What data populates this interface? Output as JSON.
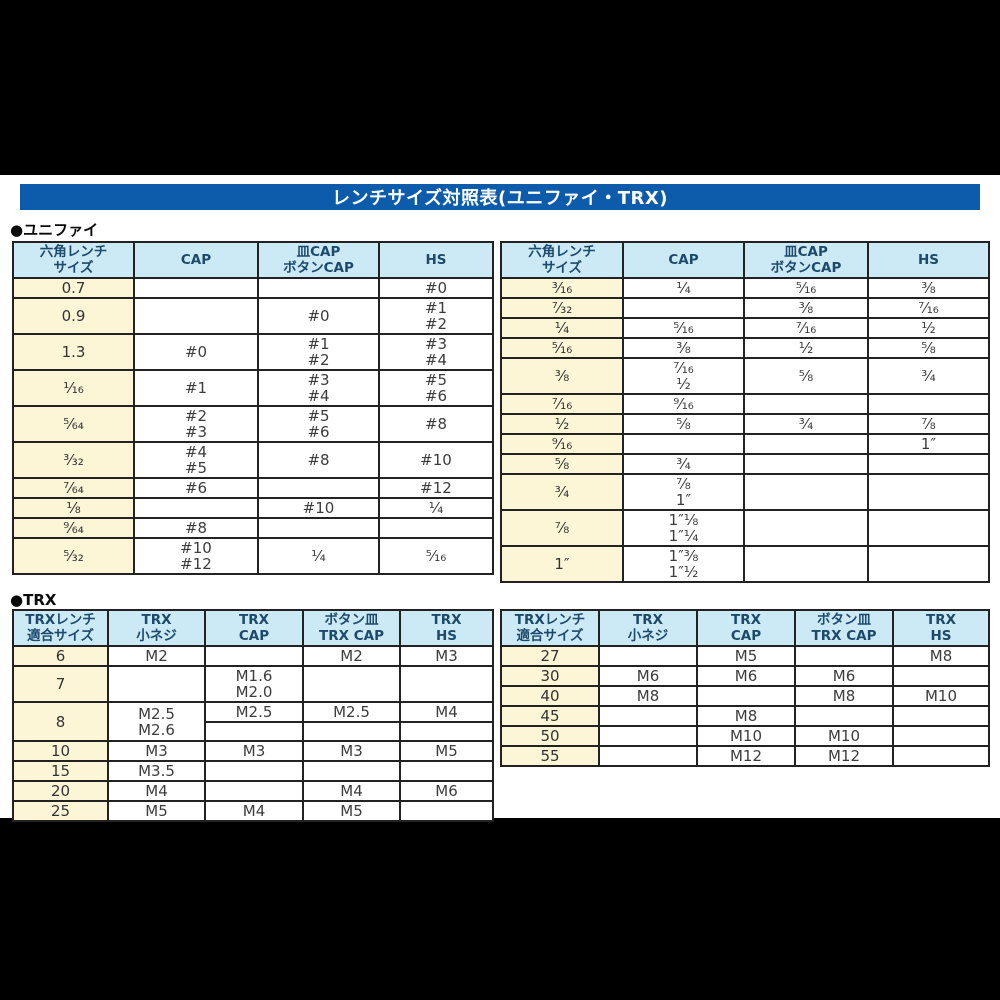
{
  "title_bar": {
    "text": "レンチサイズ対照表(ユニファイ・TRX)"
  },
  "colors": {
    "page_background": "#000000",
    "content_background": "#ffffff",
    "title_bar_background": "#0d5cab",
    "title_text": "#ffffff",
    "header_cell_background": "#cce9f6",
    "header_cell_text": "#1d4a6b",
    "size_column_background": "#fcf6d7",
    "border": "#222222",
    "cell_text": "#3c3c3c"
  },
  "sections": [
    {
      "label": "●ユニファイ",
      "tables": [
        {
          "name": "unify-left",
          "headers": [
            "六角レンチ\nサイズ",
            "CAP",
            "皿CAP\nボタンCAP",
            "HS"
          ],
          "rows": [
            {
              "size": "0.7",
              "cells": [
                "",
                "",
                "#0"
              ]
            },
            {
              "size": "0.9",
              "cells": [
                "",
                "#0",
                "#1\n#2"
              ]
            },
            {
              "size": "1.3",
              "cells": [
                "#0",
                "#1\n#2",
                "#3\n#4"
              ]
            },
            {
              "size": "¹⁄₁₆",
              "cells": [
                "#1",
                "#3\n#4",
                "#5\n#6"
              ]
            },
            {
              "size": "⁵⁄₆₄",
              "cells": [
                "#2\n#3",
                "#5\n#6",
                "#8"
              ]
            },
            {
              "size": "³⁄₃₂",
              "cells": [
                "#4\n#5",
                "#8",
                "#10"
              ]
            },
            {
              "size": "⁷⁄₆₄",
              "cells": [
                "#6",
                "",
                "#12"
              ]
            },
            {
              "size": "¹⁄₈",
              "cells": [
                "",
                "#10",
                "¹⁄₄"
              ]
            },
            {
              "size": "⁹⁄₆₄",
              "cells": [
                "#8",
                "",
                ""
              ]
            },
            {
              "size": "⁵⁄₃₂",
              "cells": [
                "#10\n#12",
                "¹⁄₄",
                "⁵⁄₁₆"
              ]
            }
          ]
        },
        {
          "name": "unify-right",
          "headers": [
            "六角レンチ\nサイズ",
            "CAP",
            "皿CAP\nボタンCAP",
            "HS"
          ],
          "rows": [
            {
              "size": "³⁄₁₆",
              "cells": [
                "¹⁄₄",
                "⁵⁄₁₆",
                "³⁄₈"
              ]
            },
            {
              "size": "⁷⁄₃₂",
              "cells": [
                "",
                "³⁄₈",
                "⁷⁄₁₆"
              ]
            },
            {
              "size": "¹⁄₄",
              "cells": [
                "⁵⁄₁₆",
                "⁷⁄₁₆",
                "¹⁄₂"
              ]
            },
            {
              "size": "⁵⁄₁₆",
              "cells": [
                "³⁄₈",
                "¹⁄₂",
                "⁵⁄₈"
              ]
            },
            {
              "size": "³⁄₈",
              "cells": [
                "⁷⁄₁₆\n¹⁄₂",
                "⁵⁄₈",
                "³⁄₄"
              ]
            },
            {
              "size": "⁷⁄₁₆",
              "cells": [
                "⁹⁄₁₆",
                "",
                ""
              ]
            },
            {
              "size": "¹⁄₂",
              "cells": [
                "⁵⁄₈",
                "³⁄₄",
                "⁷⁄₈"
              ]
            },
            {
              "size": "⁹⁄₁₆",
              "cells": [
                "",
                "",
                "1″"
              ]
            },
            {
              "size": "⁵⁄₈",
              "cells": [
                "³⁄₄",
                "",
                ""
              ]
            },
            {
              "size": "³⁄₄",
              "cells": [
                "⁷⁄₈\n1″",
                "",
                ""
              ]
            },
            {
              "size": "⁷⁄₈",
              "cells": [
                "1″¹⁄₈\n1″¹⁄₄",
                "",
                ""
              ]
            },
            {
              "size": "1″",
              "cells": [
                "1″³⁄₈\n1″¹⁄₂",
                "",
                ""
              ]
            }
          ]
        }
      ]
    },
    {
      "label": "●TRX",
      "tables": [
        {
          "name": "trx-left",
          "headers": [
            "TRXレンチ\n適合サイズ",
            "TRX\n小ネジ",
            "TRX\nCAP",
            "ボタン皿\nTRX CAP",
            "TRX\nHS"
          ],
          "rows": [
            {
              "size": "6",
              "cells": [
                "M2",
                "",
                "M2",
                "M3"
              ]
            },
            {
              "size": "7",
              "cells": [
                "",
                "M1.6\nM2.0",
                "",
                ""
              ]
            },
            {
              "size": "8",
              "cells": [
                "M2.5\nM2.6",
                "M2.5",
                "M2.5",
                "M4"
              ],
              "subrow": [
                "",
                "",
                ""
              ]
            },
            {
              "size": "10",
              "cells": [
                "M3",
                "M3",
                "M3",
                "M5"
              ]
            },
            {
              "size": "15",
              "cells": [
                "M3.5",
                "",
                "",
                ""
              ]
            },
            {
              "size": "20",
              "cells": [
                "M4",
                "",
                "M4",
                "M6"
              ]
            },
            {
              "size": "25",
              "cells": [
                "M5",
                "M4",
                "M5",
                ""
              ]
            }
          ]
        },
        {
          "name": "trx-right",
          "headers": [
            "TRXレンチ\n適合サイズ",
            "TRX\n小ネジ",
            "TRX\nCAP",
            "ボタン皿\nTRX CAP",
            "TRX\nHS"
          ],
          "rows": [
            {
              "size": "27",
              "cells": [
                "",
                "M5",
                "",
                "M8"
              ]
            },
            {
              "size": "30",
              "cells": [
                "M6",
                "M6",
                "M6",
                ""
              ]
            },
            {
              "size": "40",
              "cells": [
                "M8",
                "",
                "M8",
                "M10"
              ]
            },
            {
              "size": "45",
              "cells": [
                "",
                "M8",
                "",
                ""
              ]
            },
            {
              "size": "50",
              "cells": [
                "",
                "M10",
                "M10",
                ""
              ]
            },
            {
              "size": "55",
              "cells": [
                "",
                "M12",
                "M12",
                ""
              ]
            }
          ]
        }
      ]
    }
  ]
}
